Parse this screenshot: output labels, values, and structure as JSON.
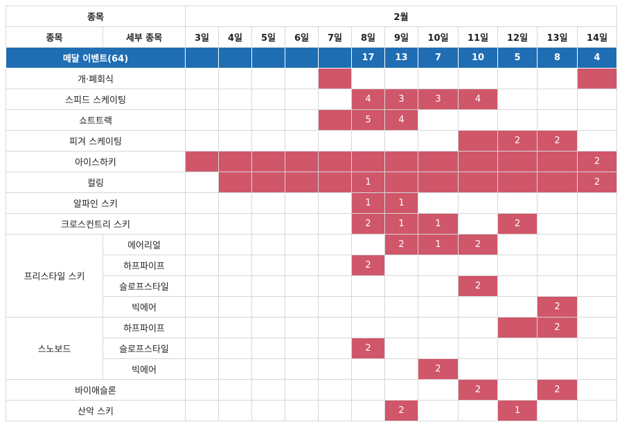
{
  "header": {
    "sport_col": "종목",
    "month": "2월",
    "sport_label": "종목",
    "detail_label": "세부 종목",
    "days": [
      "3일",
      "4일",
      "5일",
      "6일",
      "7일",
      "8일",
      "9일",
      "10일",
      "11일",
      "12일",
      "13일",
      "14일"
    ]
  },
  "medal_row": {
    "label": "메달 이벤트(64)",
    "values": [
      "",
      "",
      "",
      "",
      "",
      "17",
      "13",
      "7",
      "10",
      "5",
      "8",
      "4"
    ]
  },
  "colors": {
    "highlight": "#d0566a",
    "header_blue": "#1f6db3"
  },
  "rows": [
    {
      "sport": "개·폐회식",
      "active": [
        0,
        0,
        0,
        0,
        1,
        0,
        0,
        0,
        0,
        0,
        0,
        1
      ],
      "values": [
        "",
        "",
        "",
        "",
        "",
        "",
        "",
        "",
        "",
        "",
        "",
        ""
      ]
    },
    {
      "sport": "스피드 스케이팅",
      "active": [
        0,
        0,
        0,
        0,
        0,
        1,
        1,
        1,
        1,
        0,
        0,
        0
      ],
      "values": [
        "",
        "",
        "",
        "",
        "",
        "4",
        "3",
        "3",
        "4",
        "",
        "",
        ""
      ]
    },
    {
      "sport": "쇼트트랙",
      "active": [
        0,
        0,
        0,
        0,
        1,
        1,
        1,
        0,
        0,
        0,
        0,
        0
      ],
      "values": [
        "",
        "",
        "",
        "",
        "",
        "5",
        "4",
        "",
        "",
        "",
        "",
        ""
      ]
    },
    {
      "sport": "피겨 스케이팅",
      "active": [
        0,
        0,
        0,
        0,
        0,
        0,
        0,
        0,
        1,
        1,
        1,
        0
      ],
      "values": [
        "",
        "",
        "",
        "",
        "",
        "",
        "",
        "",
        "",
        "2",
        "2",
        ""
      ]
    },
    {
      "sport": "아이스하키",
      "active": [
        1,
        1,
        1,
        1,
        1,
        1,
        1,
        1,
        1,
        1,
        1,
        1
      ],
      "values": [
        "",
        "",
        "",
        "",
        "",
        "",
        "",
        "",
        "",
        "",
        "",
        "2"
      ]
    },
    {
      "sport": "컬링",
      "active": [
        0,
        1,
        1,
        1,
        1,
        1,
        1,
        1,
        1,
        1,
        1,
        1
      ],
      "values": [
        "",
        "",
        "",
        "",
        "",
        "1",
        "",
        "",
        "",
        "",
        "",
        "2"
      ]
    },
    {
      "sport": "알파인 스키",
      "active": [
        0,
        0,
        0,
        0,
        0,
        1,
        1,
        0,
        0,
        0,
        0,
        0
      ],
      "values": [
        "",
        "",
        "",
        "",
        "",
        "1",
        "1",
        "",
        "",
        "",
        "",
        ""
      ]
    },
    {
      "sport": "크로스컨트리 스키",
      "active": [
        0,
        0,
        0,
        0,
        0,
        1,
        1,
        1,
        0,
        1,
        0,
        0
      ],
      "values": [
        "",
        "",
        "",
        "",
        "",
        "2",
        "1",
        "1",
        "",
        "2",
        "",
        ""
      ]
    },
    {
      "sport": "프리스타일 스키",
      "detail": "에어리얼",
      "group_start": true,
      "group_size": 4,
      "active": [
        0,
        0,
        0,
        0,
        0,
        0,
        1,
        1,
        1,
        0,
        0,
        0
      ],
      "values": [
        "",
        "",
        "",
        "",
        "",
        "",
        "2",
        "1",
        "2",
        "",
        "",
        ""
      ]
    },
    {
      "sport": "프리스타일 스키",
      "detail": "하프파이프",
      "active": [
        0,
        0,
        0,
        0,
        0,
        1,
        0,
        0,
        0,
        0,
        0,
        0
      ],
      "values": [
        "",
        "",
        "",
        "",
        "",
        "2",
        "",
        "",
        "",
        "",
        "",
        ""
      ]
    },
    {
      "sport": "프리스타일 스키",
      "detail": "슬로프스타일",
      "active": [
        0,
        0,
        0,
        0,
        0,
        0,
        0,
        0,
        1,
        0,
        0,
        0
      ],
      "values": [
        "",
        "",
        "",
        "",
        "",
        "",
        "",
        "",
        "2",
        "",
        "",
        ""
      ]
    },
    {
      "sport": "프리스타일 스키",
      "detail": "빅에어",
      "active": [
        0,
        0,
        0,
        0,
        0,
        0,
        0,
        0,
        0,
        0,
        1,
        0
      ],
      "values": [
        "",
        "",
        "",
        "",
        "",
        "",
        "",
        "",
        "",
        "",
        "2",
        ""
      ]
    },
    {
      "sport": "스노보드",
      "detail": "하프파이프",
      "group_start": true,
      "group_size": 3,
      "active": [
        0,
        0,
        0,
        0,
        0,
        0,
        0,
        0,
        0,
        1,
        1,
        0
      ],
      "values": [
        "",
        "",
        "",
        "",
        "",
        "",
        "",
        "",
        "",
        "",
        "2",
        ""
      ]
    },
    {
      "sport": "스노보드",
      "detail": "슬로프스타일",
      "active": [
        0,
        0,
        0,
        0,
        0,
        1,
        0,
        0,
        0,
        0,
        0,
        0
      ],
      "values": [
        "",
        "",
        "",
        "",
        "",
        "2",
        "",
        "",
        "",
        "",
        "",
        ""
      ]
    },
    {
      "sport": "스노보드",
      "detail": "빅에어",
      "active": [
        0,
        0,
        0,
        0,
        0,
        0,
        0,
        1,
        0,
        0,
        0,
        0
      ],
      "values": [
        "",
        "",
        "",
        "",
        "",
        "",
        "",
        "2",
        "",
        "",
        "",
        ""
      ]
    },
    {
      "sport": "바이애슬론",
      "active": [
        0,
        0,
        0,
        0,
        0,
        0,
        0,
        0,
        1,
        0,
        1,
        0
      ],
      "values": [
        "",
        "",
        "",
        "",
        "",
        "",
        "",
        "",
        "2",
        "",
        "2",
        ""
      ]
    },
    {
      "sport": "산악 스키",
      "active": [
        0,
        0,
        0,
        0,
        0,
        0,
        1,
        0,
        0,
        1,
        0,
        0
      ],
      "values": [
        "",
        "",
        "",
        "",
        "",
        "",
        "2",
        "",
        "",
        "1",
        "",
        ""
      ]
    }
  ]
}
